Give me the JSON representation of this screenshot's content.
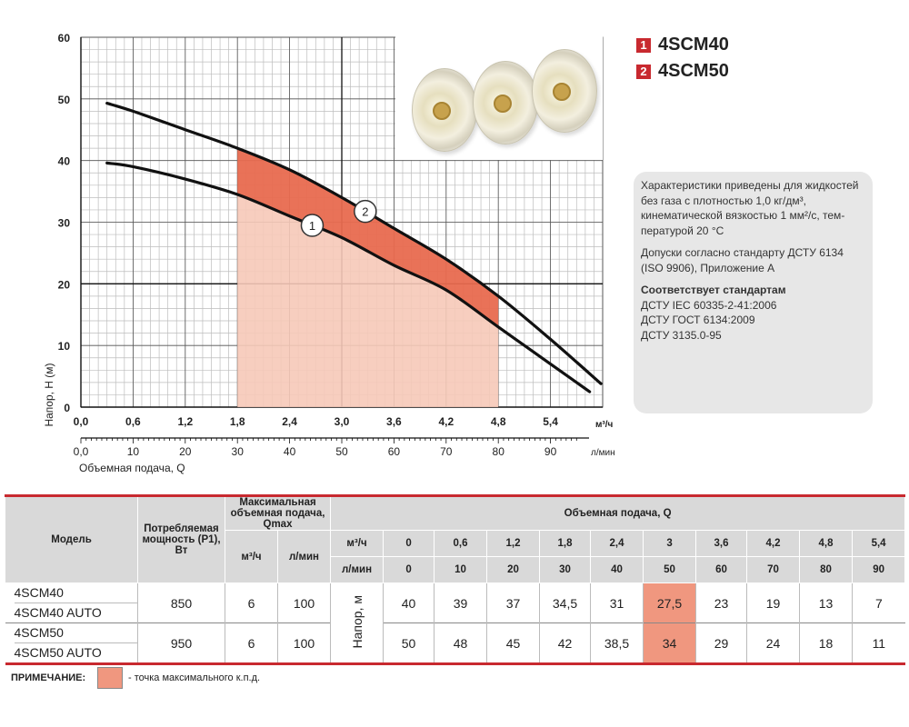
{
  "chart_data": {
    "type": "line",
    "xlabel": "Объемная подача, Q",
    "ylabel": "Напор, H (м)",
    "x_unit": "м³/ч",
    "x2_unit": "л/мин",
    "x_ticks": [
      "0,0",
      "0,6",
      "1,2",
      "1,8",
      "2,4",
      "3,0",
      "3,6",
      "4,2",
      "4,8",
      "5,4"
    ],
    "x2_ticks": [
      "0,0",
      "10",
      "20",
      "30",
      "40",
      "50",
      "60",
      "70",
      "80",
      "90"
    ],
    "y_ticks": [
      "0",
      "10",
      "20",
      "30",
      "40",
      "50",
      "60"
    ],
    "xlim": [
      0,
      6
    ],
    "x2lim": [
      0,
      100
    ],
    "ylim": [
      0,
      60
    ],
    "grid": true,
    "shaded_range": [
      1.8,
      4.8
    ],
    "series": [
      {
        "name": "1",
        "x": [
          0.3,
          0.6,
          1.2,
          1.8,
          2.4,
          3.0,
          3.6,
          4.2,
          4.8,
          5.4,
          5.85
        ],
        "y": [
          39.6,
          39,
          37,
          34.5,
          31,
          27.5,
          23,
          19,
          13,
          7,
          2.5
        ]
      },
      {
        "name": "2",
        "x": [
          0.3,
          0.6,
          1.2,
          1.8,
          2.4,
          3.0,
          3.6,
          4.2,
          4.8,
          5.4,
          5.98
        ],
        "y": [
          49.3,
          48,
          45,
          42,
          38.5,
          34,
          29,
          24,
          18,
          11,
          3.8
        ]
      }
    ]
  },
  "legend": [
    {
      "num": "1",
      "label": "4SCM40"
    },
    {
      "num": "2",
      "label": "4SCM50"
    }
  ],
  "info": {
    "p1": "Характеристики приведены для жид­костей без газа с плотностью 1,0 кг/дм³, кинематической вязкостью 1 мм²/с, тем­пературой 20 °С",
    "p2": "Допуски согласно стандарту ДСТУ 6134 (ISO 9906), Приложение А",
    "p3_title": "Соответствует стандартам",
    "p3_lines": [
      "ДСТУ IEC 60335-2-41:2006",
      "ДСТУ ГОСТ 6134:2009",
      "ДСТУ 3135.0-95"
    ]
  },
  "table": {
    "h_model": "Модель",
    "h_power": "Потребляемая мощность (P1), Вт",
    "h_qmax": "Максимальная объемная подача, Qmax",
    "h_flow": "Объемная подача, Q",
    "unit_m3": "м³/ч",
    "unit_lmin": "л/мин",
    "head_label": "Напор, м",
    "q_m3": [
      "0",
      "0,6",
      "1,2",
      "1,8",
      "2,4",
      "3",
      "3,6",
      "4,2",
      "4,8",
      "5,4"
    ],
    "q_lmin": [
      "0",
      "10",
      "20",
      "30",
      "40",
      "50",
      "60",
      "70",
      "80",
      "90"
    ],
    "rows": [
      {
        "models": [
          "4SCM40",
          "4SCM40 AUTO"
        ],
        "power": "850",
        "qmax_m3": "6",
        "qmax_l": "100",
        "heads": [
          "40",
          "39",
          "37",
          "34,5",
          "31",
          "27,5",
          "23",
          "19",
          "13",
          "7"
        ]
      },
      {
        "models": [
          "4SCM50",
          "4SCM50 AUTO"
        ],
        "power": "950",
        "qmax_m3": "6",
        "qmax_l": "100",
        "heads": [
          "50",
          "48",
          "45",
          "42",
          "38,5",
          "34",
          "29",
          "24",
          "18",
          "11"
        ]
      }
    ],
    "highlight_col": 5
  },
  "note": {
    "label": "ПРИМЕЧАНИЕ:",
    "text": "- точка максимального к.п.д."
  },
  "colors": {
    "accent": "#c8292f",
    "band_dark": "#e86a4f",
    "band_light": "#f6c9b8",
    "highlight": "#f0977f"
  }
}
